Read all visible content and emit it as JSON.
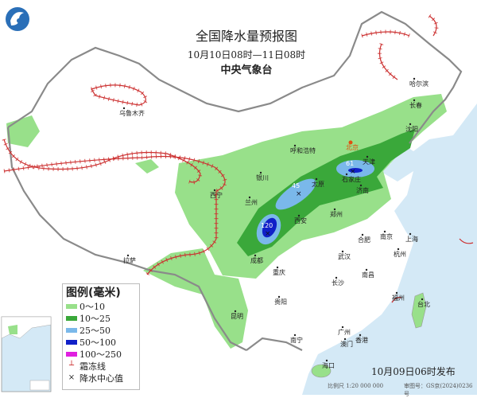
{
  "header": {
    "title": "全国降水量预报图",
    "subtitle": "10月10日08时—11日08时",
    "org": "中央气象台"
  },
  "legend": {
    "title": "图例(毫米)",
    "items": [
      {
        "label": "0～10",
        "color": "#98e08a"
      },
      {
        "label": "10～25",
        "color": "#3aa83a"
      },
      {
        "label": "25～50",
        "color": "#7ab8ea"
      },
      {
        "label": "50～100",
        "color": "#1020c8"
      },
      {
        "label": "100～250",
        "color": "#e020e0"
      }
    ],
    "frost_line_label": "霜冻线",
    "frost_line_color": "#cc3030",
    "center_label": "降水中心值",
    "center_symbol": "×"
  },
  "cities": [
    "乌鲁木齐",
    "哈尔滨",
    "长春",
    "沈阳",
    "呼和浩特",
    "北京",
    "天津",
    "石家庄",
    "太原",
    "济南",
    "银川",
    "兰州",
    "西宁",
    "西安",
    "郑州",
    "拉萨",
    "成都",
    "重庆",
    "合肥",
    "南京",
    "上海",
    "武汉",
    "杭州",
    "长沙",
    "南昌",
    "贵阳",
    "昆明",
    "福州",
    "台北",
    "南宁",
    "广州",
    "香港",
    "澳门",
    "海口"
  ],
  "rain_centers": [
    "45",
    "61",
    "120"
  ],
  "footer": {
    "issued": "10月09日06时发布",
    "scale": "比例尺 1:20 000 000",
    "map_code": "审图号：GS京(2024)0236号"
  },
  "colors": {
    "sea": "#d4e9f6",
    "border": "#8a8a8a",
    "capital": "#e05010"
  },
  "icons": [
    "cma-logo-icon",
    "city-dot-icon",
    "capital-star-icon",
    "rain-center-x-icon"
  ]
}
